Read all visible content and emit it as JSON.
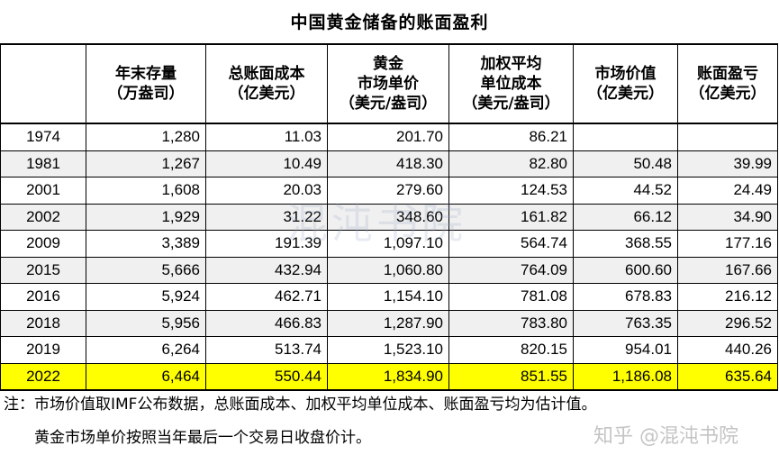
{
  "title": "中国黄金储备的账面盈利",
  "table": {
    "headers": [
      "",
      "年末存量\n（万盎司）",
      "总账面成本\n（亿美元）",
      "黄金\n市场单价\n（美元/盎司）",
      "加权平均\n单位成本\n（美元/盎司）",
      "市场价值\n（亿美元）",
      "账面盈亏\n（亿美元）"
    ],
    "rows": [
      [
        "1974",
        "1,280",
        "11.03",
        "201.70",
        "86.21",
        "",
        ""
      ],
      [
        "1981",
        "1,267",
        "10.49",
        "418.30",
        "82.80",
        "50.48",
        "39.99"
      ],
      [
        "2001",
        "1,608",
        "20.03",
        "279.60",
        "124.53",
        "44.52",
        "24.49"
      ],
      [
        "2002",
        "1,929",
        "31.22",
        "348.60",
        "161.82",
        "66.12",
        "34.90"
      ],
      [
        "2009",
        "3,389",
        "191.39",
        "1,097.10",
        "564.74",
        "368.55",
        "177.16"
      ],
      [
        "2015",
        "5,666",
        "432.94",
        "1,060.80",
        "764.09",
        "600.60",
        "167.66"
      ],
      [
        "2016",
        "5,924",
        "462.71",
        "1,154.10",
        "781.08",
        "678.83",
        "216.12"
      ],
      [
        "2018",
        "5,956",
        "466.83",
        "1,287.90",
        "783.80",
        "763.35",
        "296.52"
      ],
      [
        "2019",
        "6,264",
        "513.74",
        "1,523.10",
        "820.15",
        "954.01",
        "440.26"
      ],
      [
        "2022",
        "6,464",
        "550.44",
        "1,834.90",
        "851.55",
        "1,186.08",
        "635.64"
      ]
    ],
    "highlight_color": "#ffff00",
    "alt_row_color": "#f0f0f0"
  },
  "notes": {
    "line1": "注：市场价值取IMF公布数据，总账面成本、加权平均单位成本、账面盈亏均为估计值。",
    "line2": "黄金市场单价按照当年最后一个交易日收盘价计。"
  },
  "watermark": "混沌书院",
  "credit": "知乎 @混沌书院"
}
